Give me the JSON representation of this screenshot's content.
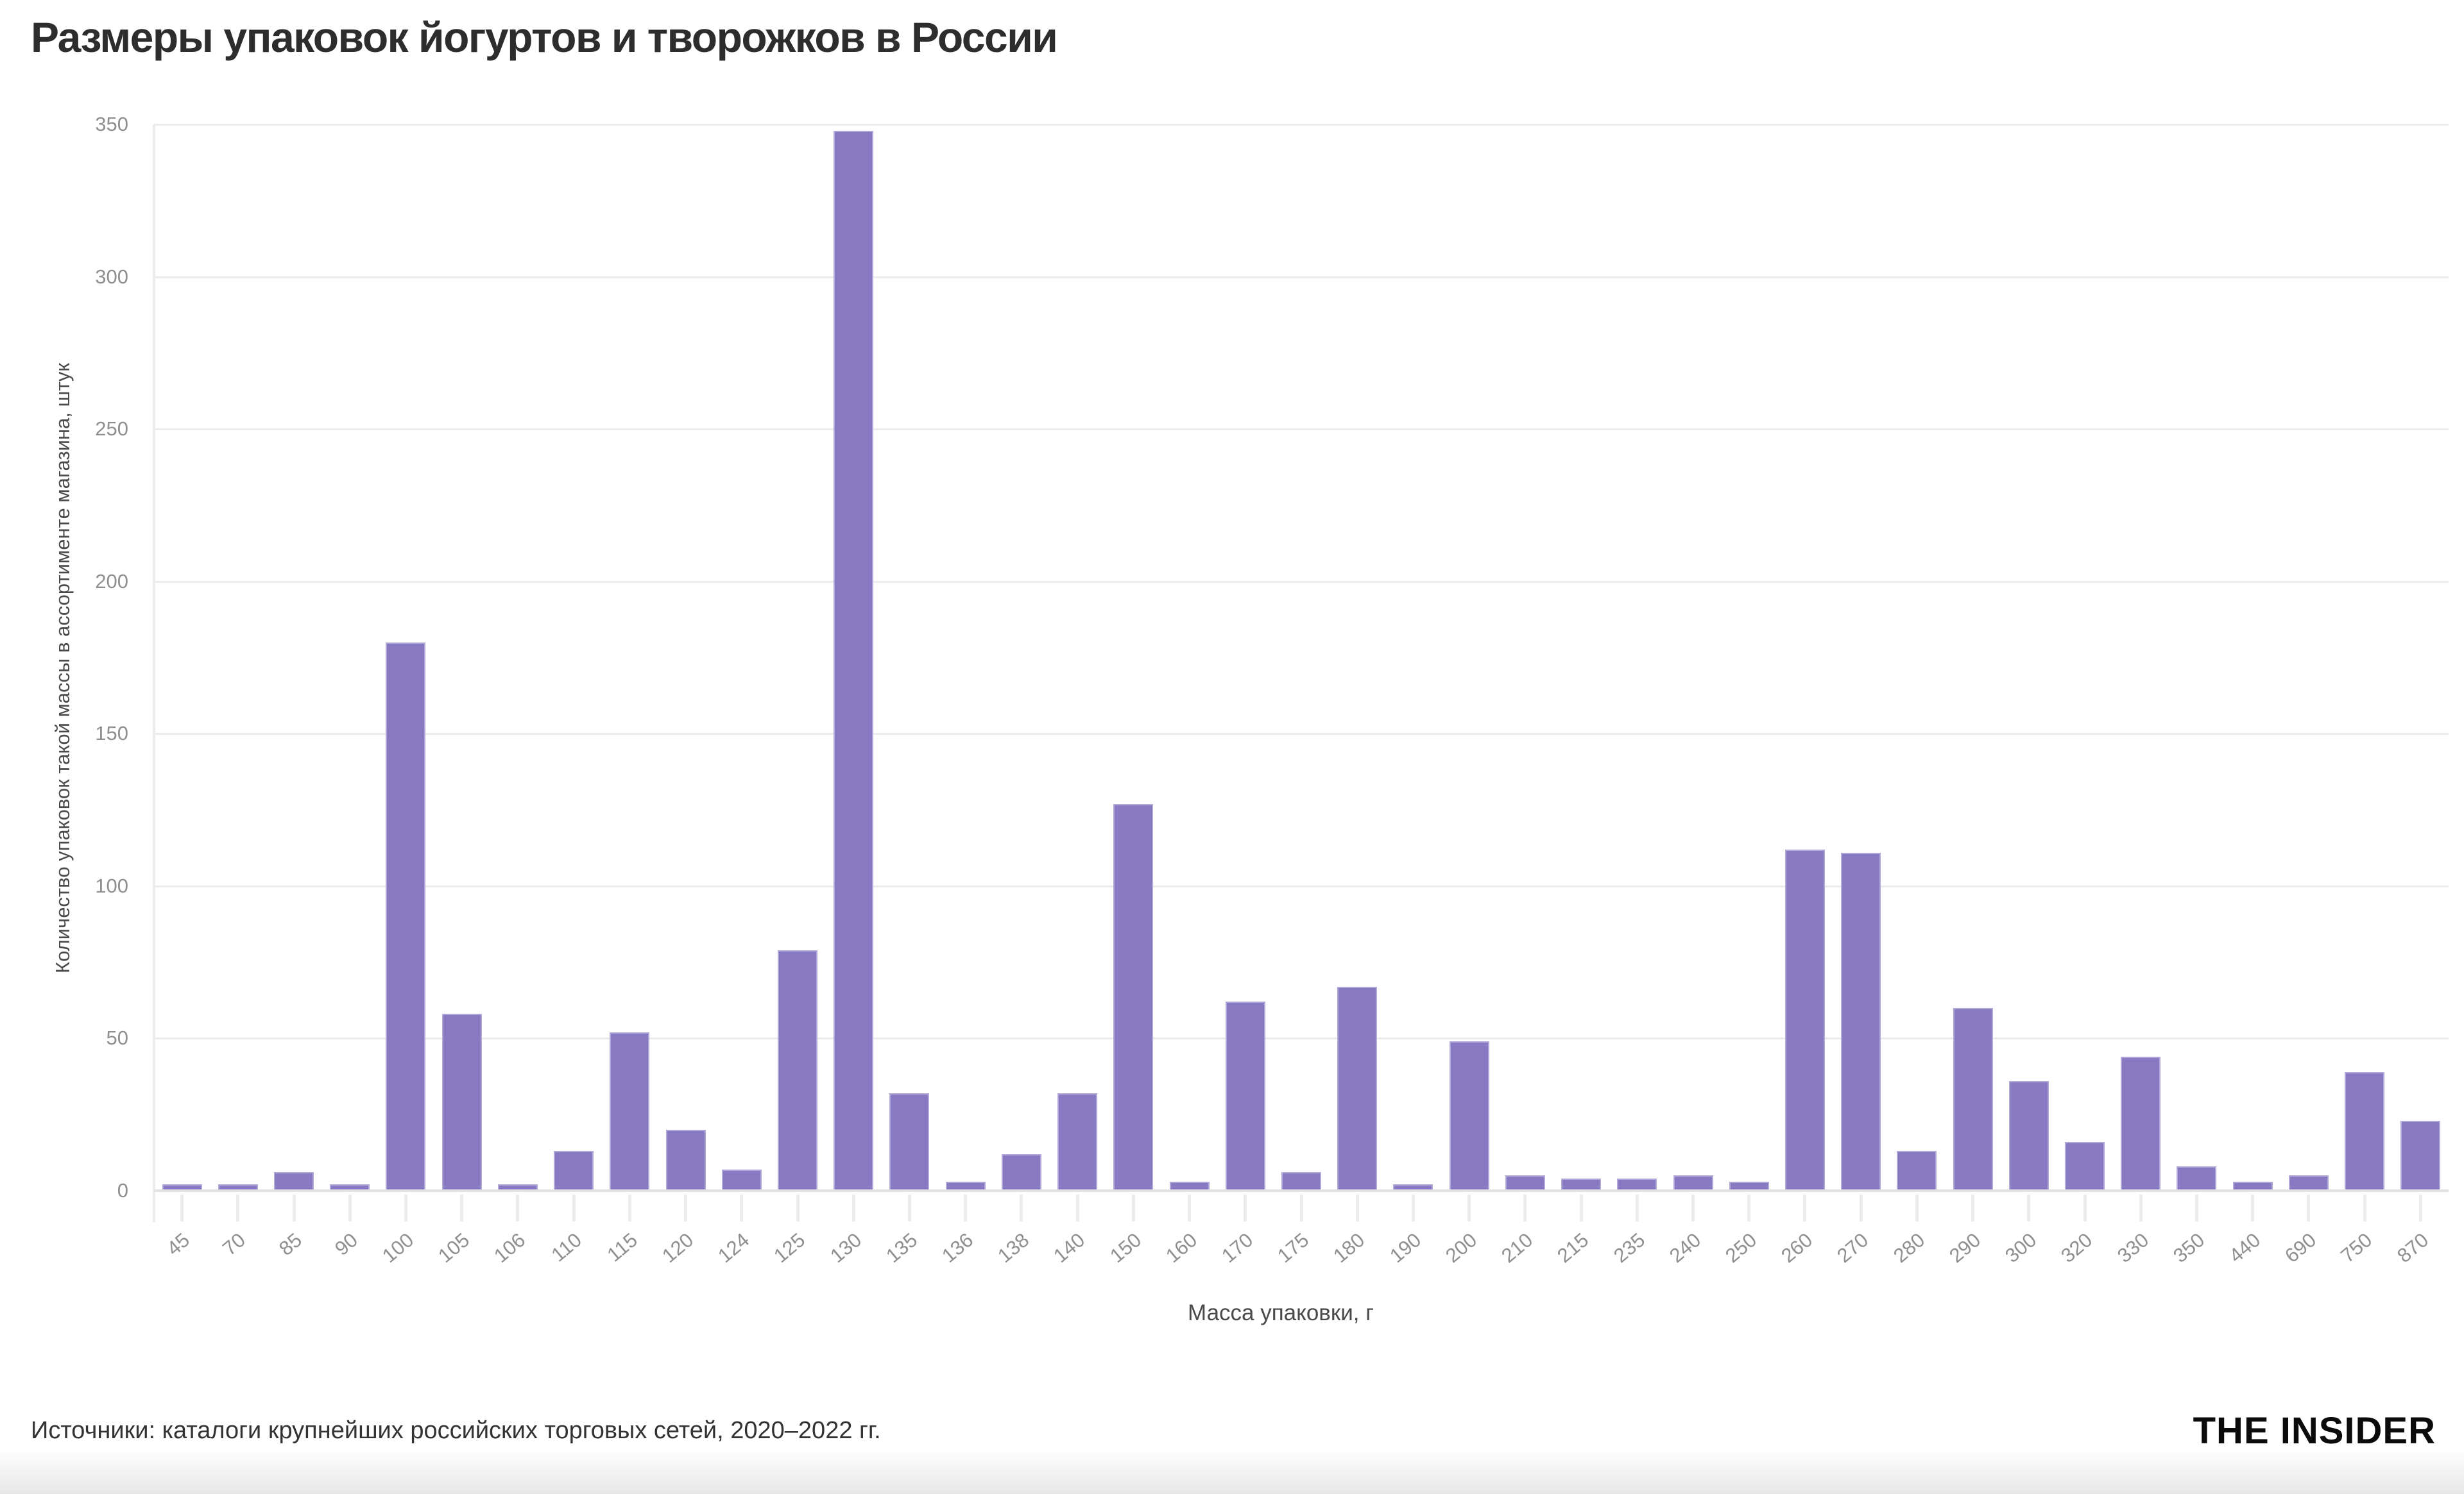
{
  "title": "Размеры упаковок йогуртов и творожков в России",
  "chart_data": {
    "type": "bar",
    "title": "Размеры упаковок йогуртов и творожков в России",
    "xlabel": "Масса упаковки, г",
    "ylabel": "Количество упаковок такой массы в ассортименте магазина, штук",
    "categories": [
      "45",
      "70",
      "85",
      "90",
      "100",
      "105",
      "106",
      "110",
      "115",
      "120",
      "124",
      "125",
      "130",
      "135",
      "136",
      "138",
      "140",
      "150",
      "160",
      "170",
      "175",
      "180",
      "190",
      "200",
      "210",
      "215",
      "235",
      "240",
      "250",
      "260",
      "270",
      "280",
      "290",
      "300",
      "320",
      "330",
      "350",
      "440",
      "690",
      "750",
      "870"
    ],
    "values": [
      2,
      2,
      6,
      2,
      180,
      58,
      2,
      13,
      52,
      20,
      7,
      79,
      348,
      32,
      3,
      12,
      32,
      127,
      3,
      62,
      6,
      67,
      2,
      49,
      5,
      4,
      4,
      5,
      3,
      112,
      111,
      13,
      60,
      36,
      16,
      44,
      8,
      3,
      5,
      39,
      23
    ],
    "ylim": [
      0,
      350
    ],
    "yticks": [
      0,
      50,
      100,
      150,
      200,
      250,
      300,
      350
    ],
    "grid": true,
    "legend": false,
    "bar_color": "#877AC2"
  },
  "footer": {
    "source": "Источники: каталоги крупнейших российских торговых сетей, 2020–2022 гг.",
    "logo": "THE INSIDER"
  },
  "colors": {
    "bar": "#877AC2",
    "grid": "#ececec",
    "axis_line": "#e2e2e2",
    "tick_label": "#8f8f8f",
    "axis_title": "#4a4a4a",
    "title": "#2d2d2d",
    "footer_text": "#333333",
    "logo": "#0b0b0b"
  }
}
